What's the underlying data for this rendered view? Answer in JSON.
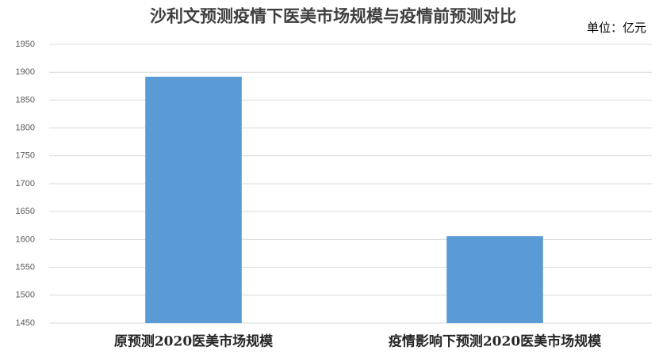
{
  "chart_data": {
    "type": "bar",
    "title": "沙利文预测疫情下医美市场规模与疫情前预测对比",
    "unit": "单位：亿元",
    "categories": [
      "原预测2020医美市场规模",
      "疫情影响下预测2020医美市场规模"
    ],
    "values": [
      1892,
      1606
    ],
    "color": "#5b9bd5",
    "ylim": [
      1450,
      1950
    ],
    "yticks": [
      1450,
      1500,
      1550,
      1600,
      1650,
      1700,
      1750,
      1800,
      1850,
      1900,
      1950
    ],
    "grid": true
  }
}
